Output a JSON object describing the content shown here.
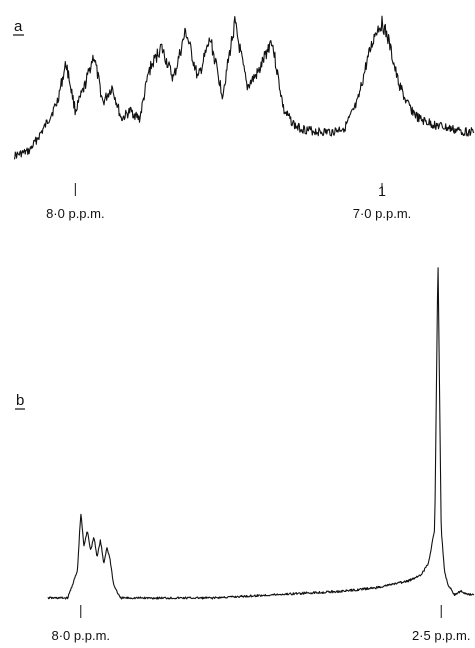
{
  "chart_data": [
    {
      "type": "line",
      "panel_label": "a",
      "x_direction": "decreasing-left-to-right",
      "xlim": [
        8.2,
        6.7
      ],
      "ticks": [
        {
          "x": 8.0,
          "label": "8·0 p.p.m."
        },
        {
          "x": 7.0,
          "label": "7·0 p.p.m."
        }
      ],
      "annotations": [
        {
          "x": 7.0,
          "text": "1"
        }
      ],
      "grid": false,
      "series": [
        {
          "x": [
            8.2,
            8.15,
            8.1,
            8.06,
            8.03,
            8.0,
            7.97,
            7.94,
            7.91,
            7.88,
            7.85,
            7.82,
            7.79,
            7.76,
            7.72,
            7.68,
            7.64,
            7.6,
            7.56,
            7.52,
            7.48,
            7.44,
            7.4,
            7.36,
            7.32,
            7.28,
            7.24,
            7.2,
            7.16,
            7.12,
            7.08,
            7.05,
            7.02,
            7.0,
            6.98,
            6.95,
            6.92,
            6.88,
            6.84,
            6.8,
            6.76,
            6.72
          ],
          "y": [
            0.12,
            0.15,
            0.3,
            0.45,
            0.7,
            0.4,
            0.55,
            0.75,
            0.45,
            0.55,
            0.35,
            0.4,
            0.35,
            0.65,
            0.8,
            0.6,
            0.9,
            0.6,
            0.85,
            0.5,
            0.95,
            0.55,
            0.65,
            0.85,
            0.4,
            0.3,
            0.28,
            0.27,
            0.27,
            0.3,
            0.45,
            0.7,
            0.9,
            0.95,
            0.85,
            0.6,
            0.45,
            0.35,
            0.32,
            0.3,
            0.28,
            0.27
          ]
        }
      ]
    },
    {
      "type": "line",
      "panel_label": "b",
      "x_direction": "decreasing-left-to-right",
      "xlim": [
        8.5,
        2.0
      ],
      "ticks": [
        {
          "x": 8.0,
          "label": "8·0 p.p.m."
        },
        {
          "x": 2.5,
          "label": "2·5 p.p.m."
        }
      ],
      "grid": false,
      "series": [
        {
          "x": [
            8.5,
            8.2,
            8.05,
            8.0,
            7.95,
            7.9,
            7.85,
            7.8,
            7.75,
            7.7,
            7.65,
            7.6,
            7.55,
            7.5,
            7.4,
            7.0,
            6.0,
            5.0,
            4.0,
            3.5,
            3.0,
            2.8,
            2.7,
            2.6,
            2.55,
            2.5,
            2.45,
            2.4,
            2.3,
            2.2,
            2.1,
            2.0
          ],
          "y": [
            0.0,
            0.0,
            0.08,
            0.25,
            0.15,
            0.2,
            0.14,
            0.18,
            0.12,
            0.17,
            0.1,
            0.15,
            0.11,
            0.04,
            0.0,
            0.0,
            0.0,
            0.01,
            0.02,
            0.03,
            0.05,
            0.07,
            0.1,
            0.2,
            1.0,
            0.2,
            0.08,
            0.04,
            0.01,
            0.02,
            0.01,
            0.01
          ]
        }
      ]
    }
  ]
}
